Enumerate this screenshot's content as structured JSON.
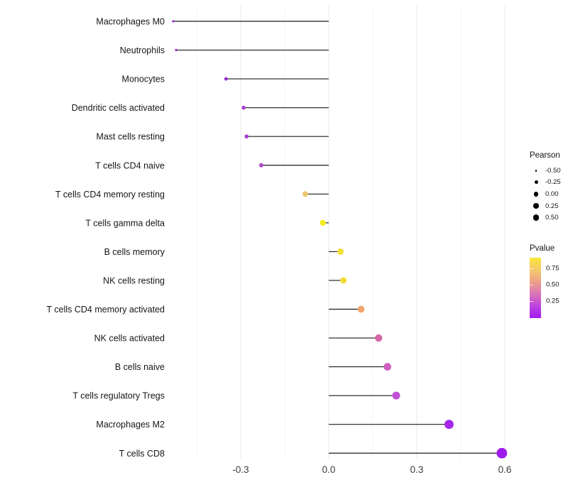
{
  "chart_data": {
    "type": "lollipop",
    "title": "",
    "xlabel": "",
    "ylabel": "",
    "orientation": "horizontal",
    "background": "#ffffff",
    "stem_color": "#1c1c1c",
    "xlim": [
      -0.56,
      0.66
    ],
    "x_major_ticks": [
      -0.3,
      0.0,
      0.3,
      0.6
    ],
    "x_major_tick_labels": [
      "-0.3",
      "0.0",
      "0.3",
      "0.6"
    ],
    "x_minor_ticks": [
      -0.45,
      -0.15,
      0.15,
      0.45
    ],
    "grid": "major+minor, vertical only",
    "rows": [
      {
        "label": "Macrophages M0",
        "pearson": -0.53,
        "color": "#8F16DC"
      },
      {
        "label": "Neutrophils",
        "pearson": -0.52,
        "color": "#8F16DC"
      },
      {
        "label": "Monocytes",
        "pearson": -0.35,
        "color": "#992BD4"
      },
      {
        "label": "Dendritic cells activated",
        "pearson": -0.29,
        "color": "#A83AD4"
      },
      {
        "label": "Mast cells resting",
        "pearson": -0.28,
        "color": "#A93CD3"
      },
      {
        "label": "T cells CD4 naive",
        "pearson": -0.23,
        "color": "#B34CCD"
      },
      {
        "label": "T cells CD4 memory resting",
        "pearson": -0.08,
        "color": "#EFC46D"
      },
      {
        "label": "T cells gamma delta",
        "pearson": -0.02,
        "color": "#F4EB20"
      },
      {
        "label": "B cells memory",
        "pearson": 0.04,
        "color": "#F2DE38"
      },
      {
        "label": "NK cells resting",
        "pearson": 0.05,
        "color": "#F2DE38"
      },
      {
        "label": "T cells CD4 memory activated",
        "pearson": 0.11,
        "color": "#F0A56D"
      },
      {
        "label": "NK cells activated",
        "pearson": 0.17,
        "color": "#D767A6"
      },
      {
        "label": "B cells naive",
        "pearson": 0.2,
        "color": "#CD5FBE"
      },
      {
        "label": "T cells regulatory  Tregs",
        "pearson": 0.23,
        "color": "#C24FD7"
      },
      {
        "label": "Macrophages M2",
        "pearson": 0.41,
        "color": "#A527E9"
      },
      {
        "label": "T cells CD8",
        "pearson": 0.59,
        "color": "#9D1BEE"
      }
    ],
    "legends": {
      "size": {
        "title": "Pearson",
        "entries": [
          {
            "label": "-0.50"
          },
          {
            "label": "-0.25"
          },
          {
            "label": "0.00"
          },
          {
            "label": "0.25"
          },
          {
            "label": "0.50"
          }
        ],
        "dot_color": "#000000"
      },
      "color": {
        "title": "Pvalue",
        "ticks": [
          {
            "label": "0.75"
          },
          {
            "label": "0.50"
          },
          {
            "label": "0.25"
          }
        ],
        "gradient_top_to_bottom": [
          "#F8E636",
          "#F5C96B",
          "#ECA089",
          "#DB74B8",
          "#BE44DF",
          "#A21AF0"
        ]
      }
    }
  }
}
